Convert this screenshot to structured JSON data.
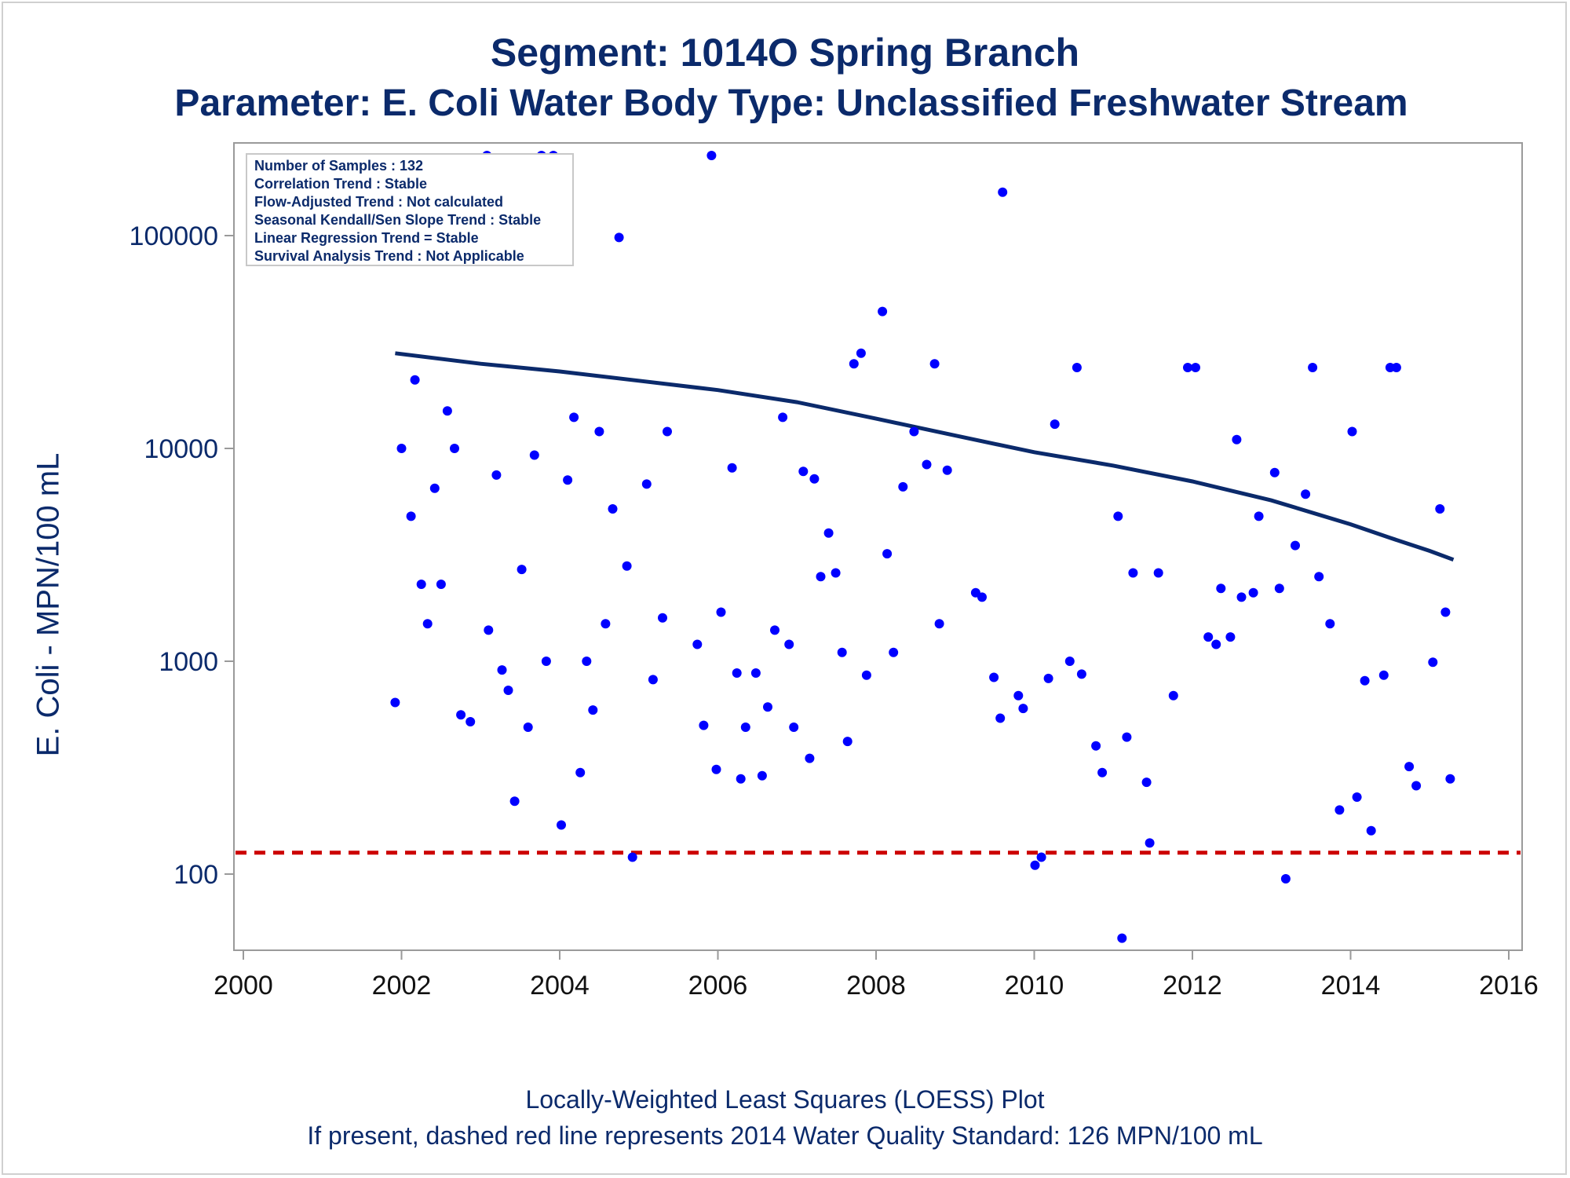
{
  "titles": {
    "line1": "Segment: 1014O  Spring Branch",
    "line2": "Parameter: E. Coli   Water Body Type: Unclassified Freshwater Stream"
  },
  "footer": {
    "line1": "Locally-Weighted Least Squares (LOESS) Plot",
    "line2": "If present, dashed red line represents 2014 Water Quality Standard: 126 MPN/100 mL"
  },
  "info_box": [
    "Number of Samples : 132",
    "Correlation Trend : Stable",
    "Flow-Adjusted Trend : Not calculated",
    "Seasonal Kendall/Sen Slope Trend : Stable",
    "Linear Regression Trend = Stable",
    "Survival Analysis Trend : Not Applicable"
  ],
  "colors": {
    "title": "#0b2a6b",
    "points": "#0000ff",
    "loess": "#0b2a6b",
    "standard_line": "#cc0000",
    "axis": "#9a9a9a"
  },
  "chart_data": {
    "type": "scatter",
    "ylabel": "E. Coli - MPN/100 mL",
    "xlabel": "",
    "xlim": [
      2000,
      2016
    ],
    "ylim": [
      45,
      250000
    ],
    "yscale": "log",
    "x_ticks": [
      "2000",
      "2002",
      "2004",
      "2006",
      "2008",
      "2010",
      "2012",
      "2014",
      "2016"
    ],
    "y_ticks": [
      "100",
      "1000",
      "10000",
      "100000"
    ],
    "y_tick_values": [
      100,
      1000,
      10000,
      100000
    ],
    "x_tick_values": [
      2000,
      2002,
      2004,
      2006,
      2008,
      2010,
      2012,
      2014,
      2016
    ],
    "standard_value": 126,
    "samples": [
      [
        2001.92,
        640
      ],
      [
        2002.0,
        10000
      ],
      [
        2002.12,
        4800
      ],
      [
        2002.17,
        21000
      ],
      [
        2002.25,
        2300
      ],
      [
        2002.33,
        1500
      ],
      [
        2002.42,
        6500
      ],
      [
        2002.5,
        2300
      ],
      [
        2002.58,
        15000
      ],
      [
        2002.67,
        10000
      ],
      [
        2002.75,
        560
      ],
      [
        2002.87,
        520
      ],
      [
        2003.08,
        240000
      ],
      [
        2003.1,
        1400
      ],
      [
        2003.2,
        7500
      ],
      [
        2003.27,
        910
      ],
      [
        2003.35,
        730
      ],
      [
        2003.43,
        220
      ],
      [
        2003.52,
        2700
      ],
      [
        2003.6,
        490
      ],
      [
        2003.68,
        9300
      ],
      [
        2003.77,
        240000
      ],
      [
        2003.83,
        1000
      ],
      [
        2003.92,
        240000
      ],
      [
        2004.02,
        170
      ],
      [
        2004.1,
        7100
      ],
      [
        2004.18,
        14000
      ],
      [
        2004.26,
        300
      ],
      [
        2004.34,
        1000
      ],
      [
        2004.42,
        590
      ],
      [
        2004.5,
        12000
      ],
      [
        2004.58,
        1500
      ],
      [
        2004.67,
        5200
      ],
      [
        2004.75,
        98000
      ],
      [
        2004.85,
        2800
      ],
      [
        2004.92,
        120
      ],
      [
        2005.1,
        6800
      ],
      [
        2005.18,
        820
      ],
      [
        2005.3,
        1600
      ],
      [
        2005.36,
        12000
      ],
      [
        2005.74,
        1200
      ],
      [
        2005.82,
        500
      ],
      [
        2005.92,
        240000
      ],
      [
        2005.98,
        310
      ],
      [
        2006.04,
        1700
      ],
      [
        2006.18,
        8100
      ],
      [
        2006.24,
        880
      ],
      [
        2006.29,
        280
      ],
      [
        2006.35,
        490
      ],
      [
        2006.48,
        880
      ],
      [
        2006.56,
        290
      ],
      [
        2006.63,
        610
      ],
      [
        2006.72,
        1400
      ],
      [
        2006.82,
        14000
      ],
      [
        2006.9,
        1200
      ],
      [
        2006.96,
        490
      ],
      [
        2007.08,
        7800
      ],
      [
        2007.16,
        350
      ],
      [
        2007.22,
        7200
      ],
      [
        2007.3,
        2500
      ],
      [
        2007.4,
        4000
      ],
      [
        2007.49,
        2600
      ],
      [
        2007.57,
        1100
      ],
      [
        2007.64,
        420
      ],
      [
        2007.72,
        25000
      ],
      [
        2007.81,
        28000
      ],
      [
        2007.88,
        860
      ],
      [
        2008.08,
        44000
      ],
      [
        2008.14,
        3200
      ],
      [
        2008.22,
        1100
      ],
      [
        2008.34,
        6600
      ],
      [
        2008.48,
        12000
      ],
      [
        2008.64,
        8400
      ],
      [
        2008.74,
        25000
      ],
      [
        2008.8,
        1500
      ],
      [
        2008.9,
        7900
      ],
      [
        2009.26,
        2100
      ],
      [
        2009.34,
        2000
      ],
      [
        2009.49,
        840
      ],
      [
        2009.57,
        540
      ],
      [
        2009.6,
        160000
      ],
      [
        2009.8,
        690
      ],
      [
        2009.86,
        600
      ],
      [
        2010.01,
        110
      ],
      [
        2010.09,
        120
      ],
      [
        2010.18,
        830
      ],
      [
        2010.26,
        13000
      ],
      [
        2010.45,
        1000
      ],
      [
        2010.54,
        24000
      ],
      [
        2010.6,
        870
      ],
      [
        2010.78,
        400
      ],
      [
        2010.86,
        300
      ],
      [
        2011.06,
        4800
      ],
      [
        2011.11,
        50
      ],
      [
        2011.17,
        440
      ],
      [
        2011.25,
        2600
      ],
      [
        2011.42,
        270
      ],
      [
        2011.46,
        140
      ],
      [
        2011.57,
        2600
      ],
      [
        2011.76,
        690
      ],
      [
        2011.94,
        24000
      ],
      [
        2012.04,
        24000
      ],
      [
        2012.2,
        1300
      ],
      [
        2012.3,
        1200
      ],
      [
        2012.36,
        2200
      ],
      [
        2012.48,
        1300
      ],
      [
        2012.56,
        11000
      ],
      [
        2012.62,
        2000
      ],
      [
        2012.77,
        2100
      ],
      [
        2012.84,
        4800
      ],
      [
        2013.04,
        7700
      ],
      [
        2013.1,
        2200
      ],
      [
        2013.18,
        95
      ],
      [
        2013.3,
        3500
      ],
      [
        2013.43,
        6100
      ],
      [
        2013.52,
        24000
      ],
      [
        2013.6,
        2500
      ],
      [
        2013.74,
        1500
      ],
      [
        2013.86,
        200
      ],
      [
        2014.02,
        12000
      ],
      [
        2014.08,
        230
      ],
      [
        2014.18,
        810
      ],
      [
        2014.26,
        160
      ],
      [
        2014.42,
        860
      ],
      [
        2014.5,
        24000
      ],
      [
        2014.58,
        24000
      ],
      [
        2014.74,
        320
      ],
      [
        2014.83,
        260
      ],
      [
        2015.04,
        990
      ],
      [
        2015.13,
        5200
      ],
      [
        2015.2,
        1700
      ],
      [
        2015.26,
        280
      ]
    ],
    "loess_curve": [
      [
        2001.92,
        28000
      ],
      [
        2003.0,
        25000
      ],
      [
        2004.0,
        23000
      ],
      [
        2005.0,
        20800
      ],
      [
        2006.0,
        18800
      ],
      [
        2007.0,
        16500
      ],
      [
        2008.0,
        13800
      ],
      [
        2009.0,
        11500
      ],
      [
        2010.0,
        9600
      ],
      [
        2011.0,
        8300
      ],
      [
        2012.0,
        7000
      ],
      [
        2013.0,
        5700
      ],
      [
        2014.0,
        4400
      ],
      [
        2014.5,
        3800
      ],
      [
        2015.0,
        3300
      ],
      [
        2015.3,
        3000
      ]
    ]
  }
}
